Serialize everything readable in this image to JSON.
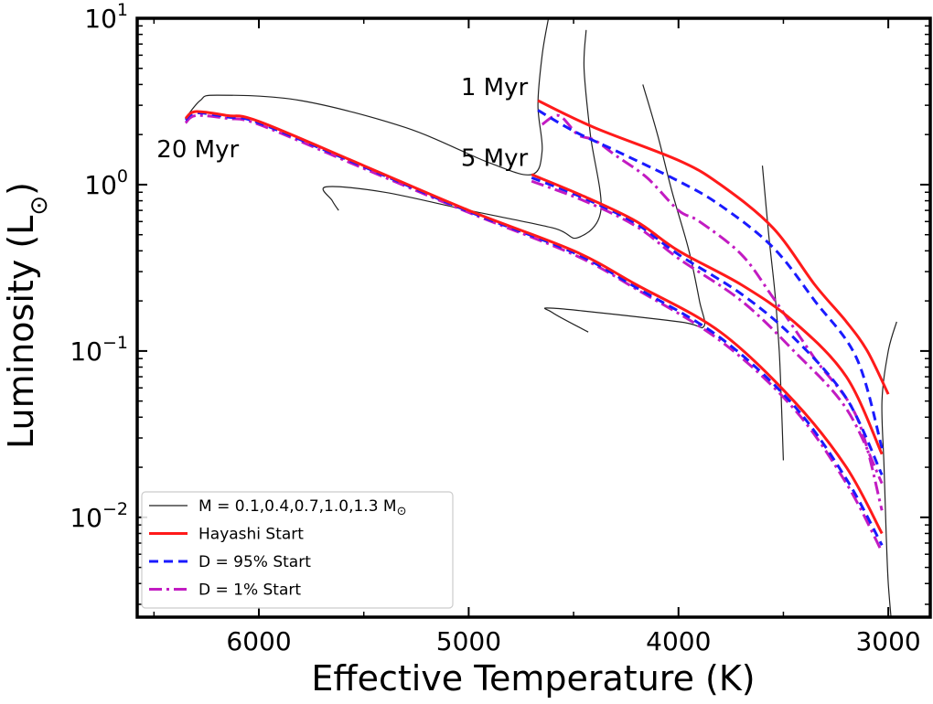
{
  "chart_data": {
    "type": "line",
    "title": "",
    "xlabel": "Effective Temperature (K)",
    "ylabel_main": "Luminosity (L",
    "ylabel_sym": "⊙",
    "ylabel_end": ")",
    "xlim": [
      6580,
      2800
    ],
    "ylim_log10": [
      -2.6,
      1.0
    ],
    "y_scale": "log",
    "x_inverted": true,
    "x_ticks": [
      {
        "value": 6000,
        "label": "6000"
      },
      {
        "value": 5000,
        "label": "5000"
      },
      {
        "value": 4000,
        "label": "4000"
      },
      {
        "value": 3000,
        "label": "3000"
      }
    ],
    "y_ticks": [
      {
        "exp": 1,
        "base": "10",
        "sup": "1"
      },
      {
        "exp": 0,
        "base": "10",
        "sup": "0"
      },
      {
        "exp": -1,
        "base": "10",
        "sup": "−1"
      },
      {
        "exp": -2,
        "base": "10",
        "sup": "−2"
      }
    ],
    "annotations": [
      {
        "text": "1 Myr",
        "x": 4700,
        "y": 3.2
      },
      {
        "text": "5 Myr",
        "x": 4700,
        "y": 1.2
      },
      {
        "text": "20 Myr",
        "x": 6400,
        "y": 2.3
      }
    ],
    "legend": {
      "position": "lower-left",
      "entries": [
        {
          "label_main": "M = 0.1,0.4,0.7,1.0,1.3 M",
          "label_sym": "⊙",
          "color": "#222222",
          "style": "solid-thin"
        },
        {
          "label_main": "Hayashi Start",
          "label_sym": "",
          "color": "#ff1a1a",
          "style": "solid"
        },
        {
          "label_main": "D = 95% Start",
          "label_sym": "",
          "color": "#1a1aff",
          "style": "dashed"
        },
        {
          "label_main": "D = 1% Start",
          "label_sym": "",
          "color": "#c21bc2",
          "style": "dashdot"
        }
      ]
    },
    "tracks": [
      {
        "name": "M = 0.1",
        "points": [
          [
            2980,
            0.002
          ],
          [
            3000,
            0.004
          ],
          [
            3010,
            0.008
          ],
          [
            3020,
            0.02
          ],
          [
            3030,
            0.05
          ],
          [
            3000,
            0.1
          ],
          [
            2960,
            0.15
          ]
        ]
      },
      {
        "name": "M = 0.4",
        "points": [
          [
            3500,
            0.022
          ],
          [
            3510,
            0.05
          ],
          [
            3520,
            0.1
          ],
          [
            3540,
            0.22
          ],
          [
            3570,
            0.5
          ],
          [
            3600,
            1.3
          ]
        ]
      },
      {
        "name": "M = 0.7",
        "points": [
          [
            4430,
            0.13
          ],
          [
            4600,
            0.17
          ],
          [
            4580,
            0.18
          ],
          [
            4000,
            0.15
          ],
          [
            3880,
            0.14
          ],
          [
            3900,
            0.2
          ],
          [
            3950,
            0.4
          ],
          [
            4030,
            0.9
          ],
          [
            4100,
            2.0
          ],
          [
            4170,
            4.0
          ]
        ]
      },
      {
        "name": "M = 1.0",
        "points": [
          [
            5620,
            0.7
          ],
          [
            5650,
            0.8
          ],
          [
            5680,
            0.97
          ],
          [
            5400,
            0.9
          ],
          [
            5000,
            0.7
          ],
          [
            4600,
            0.55
          ],
          [
            4480,
            0.48
          ],
          [
            4370,
            0.7
          ],
          [
            4420,
            2.0
          ],
          [
            4450,
            5.0
          ],
          [
            4440,
            8.5
          ]
        ]
      },
      {
        "name": "M = 1.3",
        "points": [
          [
            6350,
            2.5
          ],
          [
            6280,
            3.2
          ],
          [
            6200,
            3.45
          ],
          [
            5800,
            3.2
          ],
          [
            5300,
            2.2
          ],
          [
            4900,
            1.35
          ],
          [
            4700,
            1.15
          ],
          [
            4650,
            1.6
          ],
          [
            4670,
            3.0
          ],
          [
            4650,
            6.0
          ],
          [
            4620,
            10.0
          ]
        ]
      }
    ],
    "series": [
      {
        "name": "Hayashi Start",
        "color": "#ff1a1a",
        "style": "solid",
        "isochrones": [
          {
            "age": "1 Myr",
            "points": [
              [
                4670,
                3.2
              ],
              [
                4400,
                2.2
              ],
              [
                4000,
                1.4
              ],
              [
                3800,
                1.0
              ],
              [
                3550,
                0.55
              ],
              [
                3350,
                0.25
              ],
              [
                3200,
                0.15
              ],
              [
                3100,
                0.1
              ],
              [
                3000,
                0.055
              ]
            ]
          },
          {
            "age": "5 Myr",
            "points": [
              [
                4700,
                1.15
              ],
              [
                4450,
                0.85
              ],
              [
                4200,
                0.6
              ],
              [
                4000,
                0.4
              ],
              [
                3700,
                0.25
              ],
              [
                3450,
                0.15
              ],
              [
                3200,
                0.07
              ],
              [
                3030,
                0.024
              ]
            ]
          },
          {
            "age": "20 Myr",
            "points": [
              [
                6350,
                2.5
              ],
              [
                6300,
                2.75
              ],
              [
                6150,
                2.6
              ],
              [
                6000,
                2.4
              ],
              [
                5500,
                1.3
              ],
              [
                5000,
                0.7
              ],
              [
                4500,
                0.4
              ],
              [
                4200,
                0.25
              ],
              [
                3800,
                0.13
              ],
              [
                3450,
                0.05
              ],
              [
                3200,
                0.02
              ],
              [
                3030,
                0.008
              ]
            ]
          }
        ]
      },
      {
        "name": "D = 95% Start",
        "color": "#1a1aff",
        "style": "dashed",
        "isochrones": [
          {
            "age": "1 Myr",
            "points": [
              [
                4670,
                2.8
              ],
              [
                4500,
                2.1
              ],
              [
                4300,
                1.6
              ],
              [
                4000,
                1.05
              ],
              [
                3800,
                0.75
              ],
              [
                3550,
                0.42
              ],
              [
                3350,
                0.2
              ],
              [
                3150,
                0.09
              ],
              [
                3030,
                0.026
              ]
            ]
          },
          {
            "age": "5 Myr",
            "points": [
              [
                4700,
                1.1
              ],
              [
                4450,
                0.83
              ],
              [
                4200,
                0.58
              ],
              [
                4000,
                0.38
              ],
              [
                3700,
                0.22
              ],
              [
                3450,
                0.12
              ],
              [
                3200,
                0.052
              ],
              [
                3030,
                0.018
              ]
            ]
          },
          {
            "age": "20 Myr",
            "points": [
              [
                6350,
                2.45
              ],
              [
                6300,
                2.7
              ],
              [
                6150,
                2.55
              ],
              [
                6000,
                2.35
              ],
              [
                5500,
                1.28
              ],
              [
                5000,
                0.69
              ],
              [
                4500,
                0.39
              ],
              [
                4200,
                0.24
              ],
              [
                3800,
                0.12
              ],
              [
                3450,
                0.047
              ],
              [
                3200,
                0.017
              ],
              [
                3030,
                0.0068
              ]
            ]
          }
        ]
      },
      {
        "name": "D = 1% Start",
        "color": "#c21bc2",
        "style": "dashdot",
        "isochrones": [
          {
            "age": "1 Myr",
            "points": [
              [
                4650,
                2.3
              ],
              [
                4570,
                2.6
              ],
              [
                4480,
                2.0
              ],
              [
                4400,
                1.85
              ],
              [
                4300,
                1.5
              ],
              [
                4150,
                1.1
              ],
              [
                4000,
                0.7
              ],
              [
                3900,
                0.6
              ],
              [
                3700,
                0.38
              ],
              [
                3550,
                0.21
              ],
              [
                3350,
                0.09
              ],
              [
                3150,
                0.04
              ],
              [
                3030,
                0.011
              ]
            ]
          },
          {
            "age": "5 Myr",
            "points": [
              [
                4700,
                1.05
              ],
              [
                4450,
                0.8
              ],
              [
                4200,
                0.56
              ],
              [
                4000,
                0.36
              ],
              [
                3700,
                0.2
              ],
              [
                3450,
                0.1
              ],
              [
                3200,
                0.045
              ],
              [
                3030,
                0.016
              ]
            ]
          },
          {
            "age": "20 Myr",
            "points": [
              [
                6350,
                2.35
              ],
              [
                6300,
                2.6
              ],
              [
                6150,
                2.5
              ],
              [
                6000,
                2.3
              ],
              [
                5500,
                1.25
              ],
              [
                5000,
                0.68
              ],
              [
                4500,
                0.38
              ],
              [
                4200,
                0.235
              ],
              [
                3800,
                0.115
              ],
              [
                3450,
                0.045
              ],
              [
                3200,
                0.016
              ],
              [
                3030,
                0.0062
              ]
            ]
          }
        ]
      }
    ]
  }
}
